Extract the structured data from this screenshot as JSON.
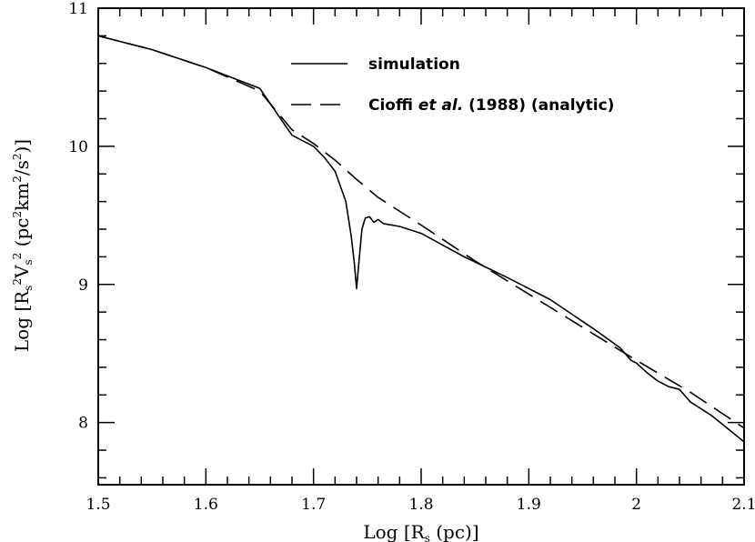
{
  "chart_data": {
    "type": "line",
    "title": "",
    "xlabel": {
      "pre": "Log [R",
      "sub": "s",
      "post": " (pc)]"
    },
    "ylabel": {
      "p1": "Log [R",
      "s1": "s",
      "p2": "2",
      "p3": "V",
      "s2": "s",
      "p4": "2",
      "p5": " (pc",
      "p6": "2",
      "p7": "km",
      "p8": "2",
      "p9": "/s",
      "p10": "2",
      "p11": ")]"
    },
    "xlim": [
      1.5,
      2.1
    ],
    "ylim": [
      7.55,
      11.0
    ],
    "xticks": [
      1.5,
      1.6,
      1.7,
      1.8,
      1.9,
      2.0,
      2.1
    ],
    "xtick_labels": [
      "1.5",
      "1.6",
      "1.7",
      "1.8",
      "1.9",
      "2",
      "2.1"
    ],
    "yticks": [
      8,
      9,
      10,
      11
    ],
    "ytick_labels": [
      "8",
      "9",
      "10",
      "11"
    ],
    "grid": false,
    "legend": {
      "position": "top-right",
      "simulation": "simulation",
      "analytic_a": "Cioffi ",
      "analytic_b": "et al.",
      "analytic_c": " (1988) (analytic)"
    },
    "series": [
      {
        "name": "simulation",
        "style": "solid",
        "x": [
          1.5,
          1.55,
          1.6,
          1.65,
          1.68,
          1.7,
          1.71,
          1.72,
          1.73,
          1.735,
          1.738,
          1.74,
          1.742,
          1.745,
          1.748,
          1.752,
          1.756,
          1.76,
          1.765,
          1.78,
          1.8,
          1.84,
          1.88,
          1.92,
          1.96,
          1.985,
          1.995,
          2.0,
          2.01,
          2.02,
          2.03,
          2.04,
          2.05,
          2.07,
          2.1
        ],
        "y": [
          10.8,
          10.7,
          10.57,
          10.42,
          10.08,
          10.0,
          9.92,
          9.82,
          9.6,
          9.35,
          9.15,
          8.97,
          9.15,
          9.4,
          9.48,
          9.49,
          9.45,
          9.47,
          9.44,
          9.42,
          9.37,
          9.2,
          9.05,
          8.89,
          8.68,
          8.54,
          8.45,
          8.43,
          8.36,
          8.3,
          8.26,
          8.24,
          8.15,
          8.05,
          7.86
        ]
      },
      {
        "name": "Cioffi et al. (1988) (analytic)",
        "style": "dashed",
        "x": [
          1.5,
          1.55,
          1.6,
          1.65,
          1.68,
          1.7,
          1.72,
          1.74,
          1.76,
          1.8,
          1.85,
          1.9,
          1.95,
          2.0,
          2.05,
          2.1
        ],
        "y": [
          10.8,
          10.7,
          10.57,
          10.4,
          10.12,
          10.02,
          9.9,
          9.76,
          9.63,
          9.43,
          9.17,
          8.93,
          8.69,
          8.45,
          8.22,
          7.96
        ]
      }
    ]
  }
}
